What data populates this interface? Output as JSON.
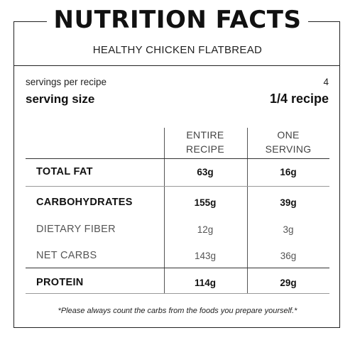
{
  "header": {
    "title": "NUTRITION FACTS",
    "subtitle": "HEALTHY CHICKEN FLATBREAD"
  },
  "servings": {
    "per_recipe_label": "servings per recipe",
    "per_recipe_value": "4",
    "size_label": "serving size",
    "size_value": "1/4 recipe"
  },
  "columns": [
    {
      "line1": "ENTIRE",
      "line2": "RECIPE"
    },
    {
      "line1": "ONE",
      "line2": "SERVING"
    }
  ],
  "rows": [
    {
      "label": "TOTAL FAT",
      "entire": "63g",
      "one": "16g"
    },
    {
      "label": "CARBOHYDRATES",
      "entire": "155g",
      "one": "39g"
    },
    {
      "label": "DIETARY FIBER",
      "entire": "12g",
      "one": "3g"
    },
    {
      "label": "NET CARBS",
      "entire": "143g",
      "one": "36g"
    },
    {
      "label": "PROTEIN",
      "entire": "114g",
      "one": "29g"
    }
  ],
  "footnote": "*Please always count the carbs from the foods you prepare yourself.*"
}
